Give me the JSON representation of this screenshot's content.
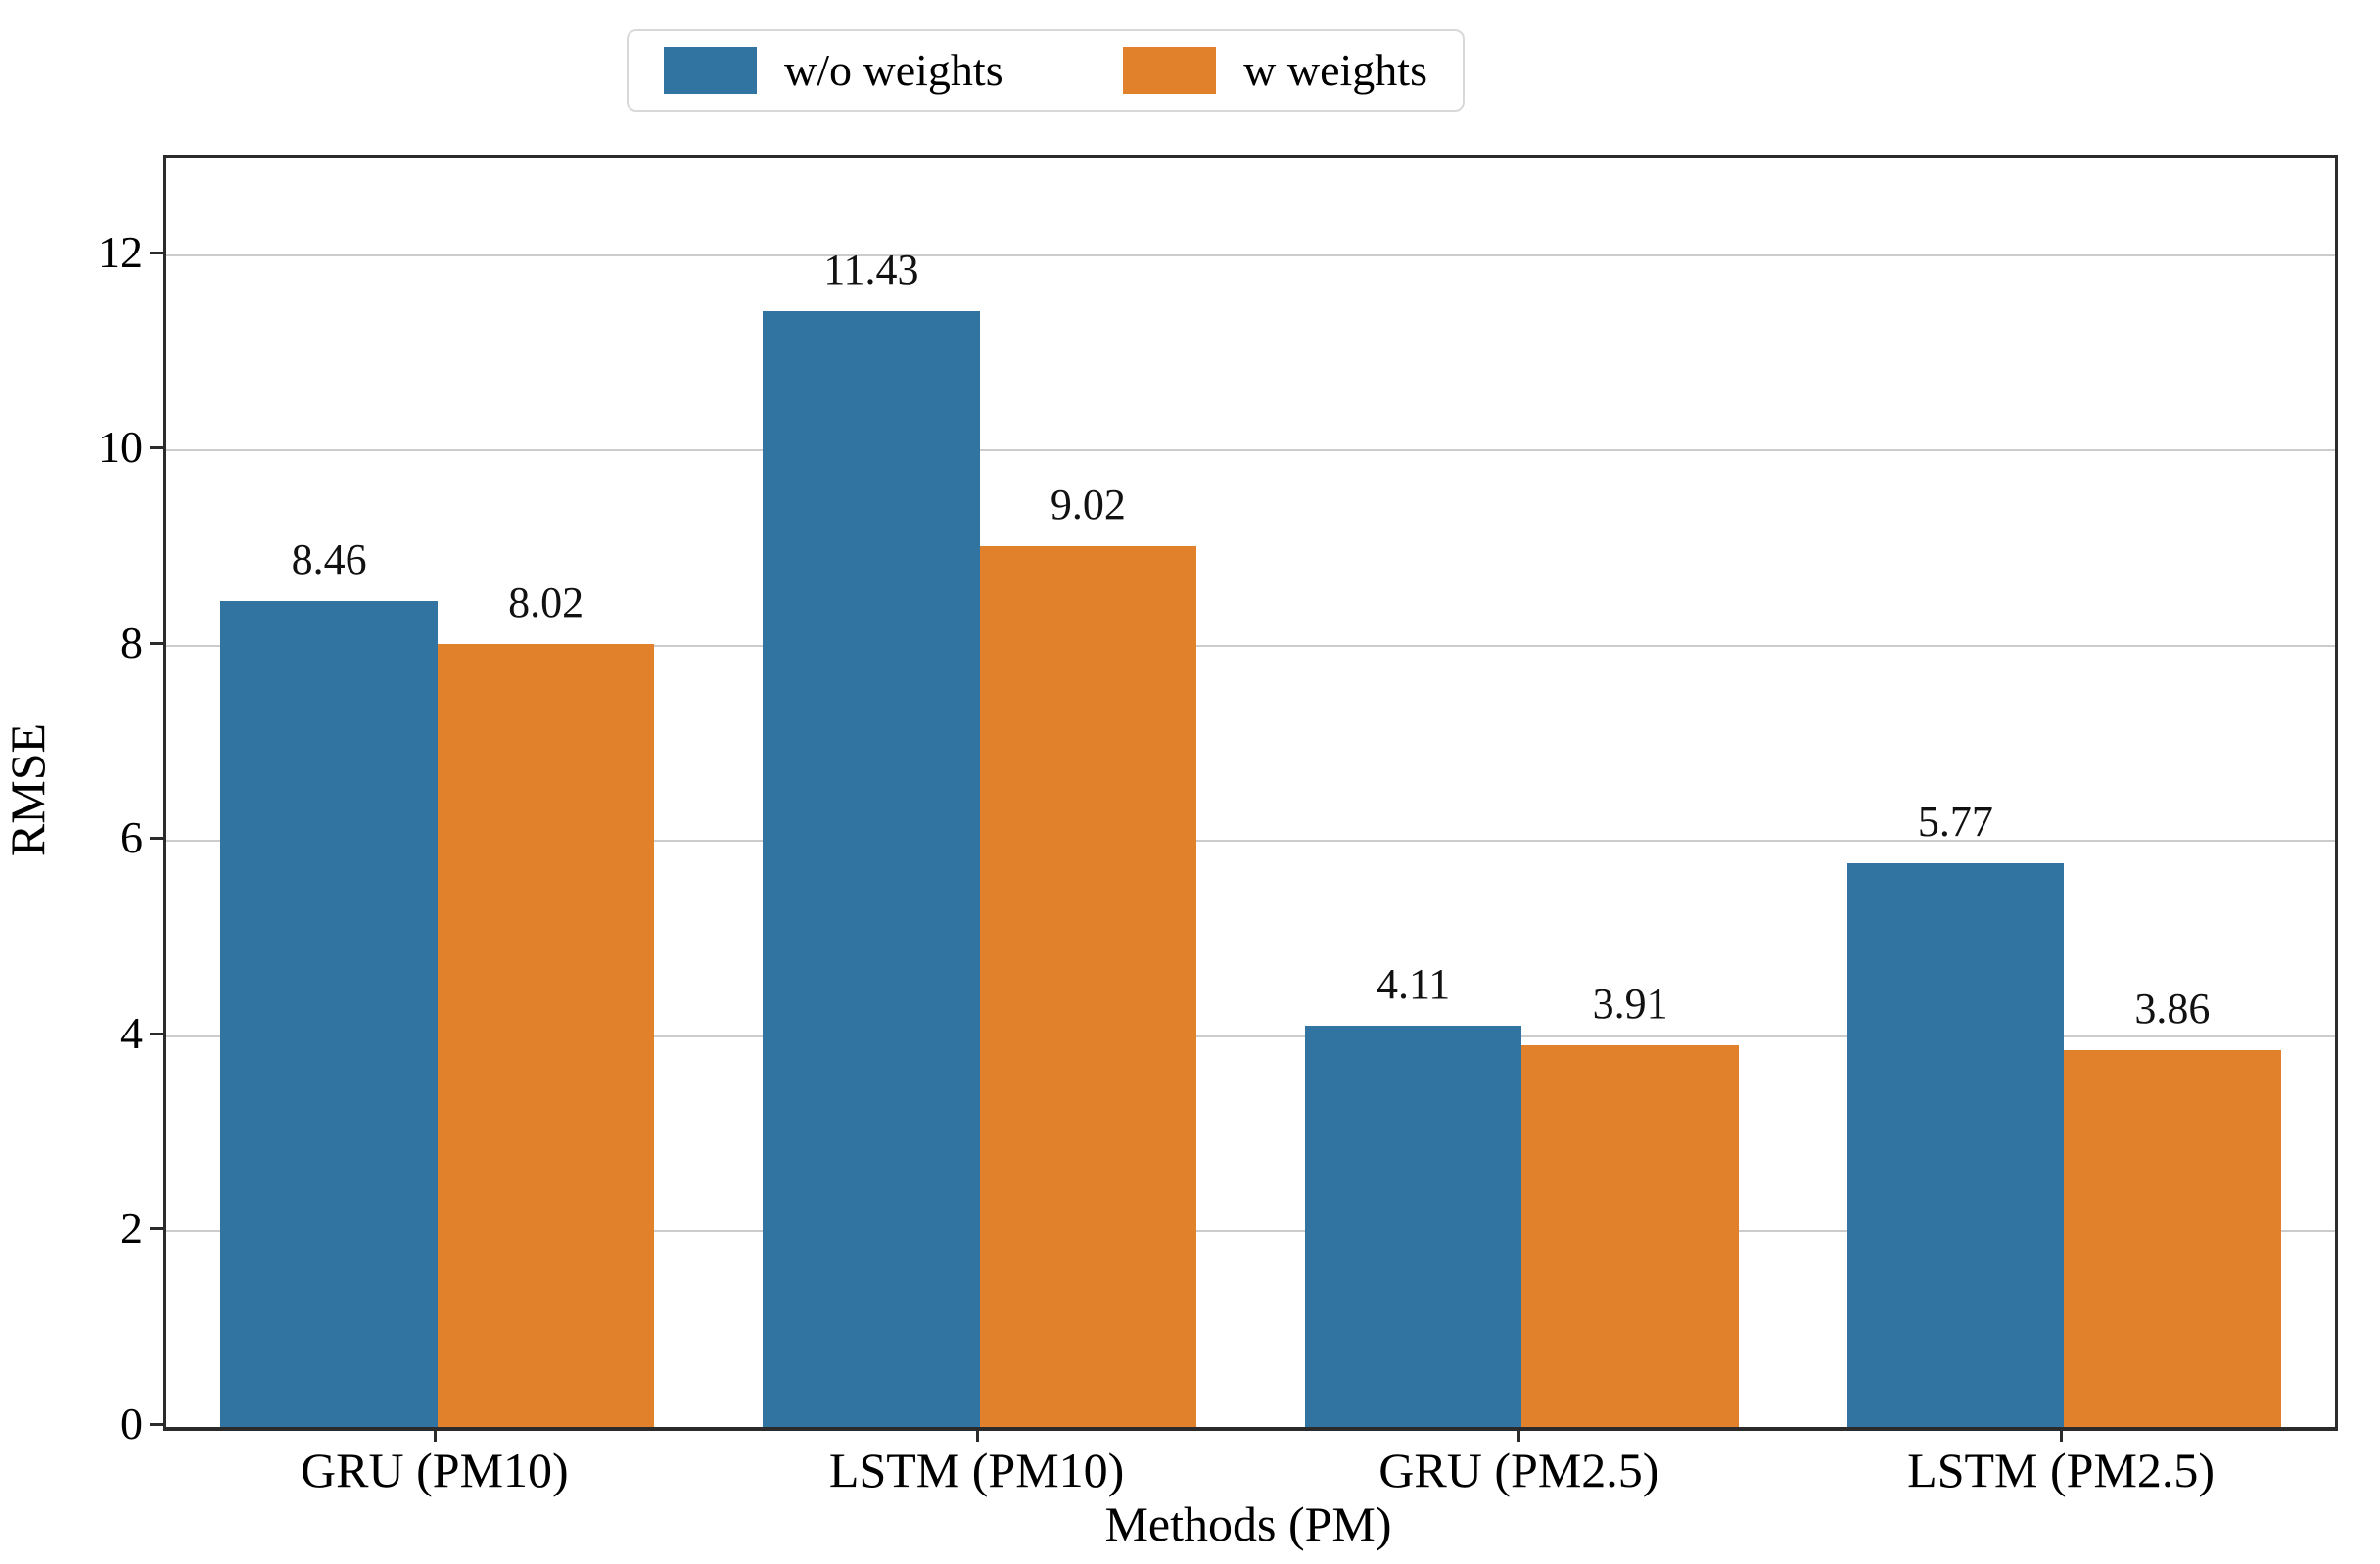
{
  "figure": {
    "background": "#ffffff",
    "text_color": "#000000",
    "spine_color": "#2b2b2b",
    "gridline_color": "#cccccc"
  },
  "chart_data": {
    "type": "bar",
    "title": "",
    "xlabel": "Methods (PM)",
    "ylabel": "RMSE",
    "categories": [
      "GRU (PM10)",
      "LSTM (PM10)",
      "GRU (PM2.5)",
      "LSTM (PM2.5)"
    ],
    "series": [
      {
        "name": "w/o weights",
        "color": "#3274A1",
        "values": [
          8.46,
          11.43,
          4.11,
          5.77
        ]
      },
      {
        "name": "w weights",
        "color": "#E1812C",
        "values": [
          8.02,
          9.02,
          3.91,
          3.86
        ]
      }
    ],
    "bar_value_labels": {
      "w/o weights": [
        "8.46",
        "11.43",
        "4.11",
        "5.77"
      ],
      "w weights": [
        "8.02",
        "9.02",
        "3.91",
        "3.86"
      ]
    },
    "ylim": [
      0,
      13
    ],
    "yticks": [
      0,
      2,
      4,
      6,
      8,
      10,
      12
    ],
    "grid": "horizontal-only",
    "legend_position": "top-center-outside-plot",
    "legend_entries": [
      "w/o weights",
      "w weights"
    ]
  }
}
